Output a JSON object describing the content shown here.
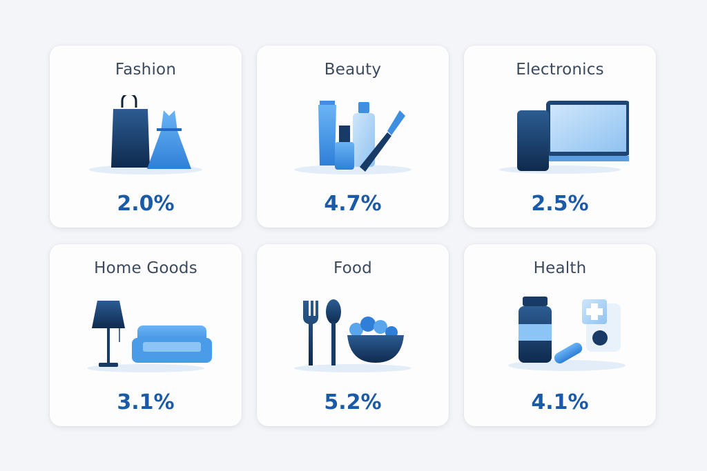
{
  "cards": [
    {
      "label": "Fashion",
      "value": "2.0%",
      "icon": "shopping-bag-dress-icon"
    },
    {
      "label": "Beauty",
      "value": "4.7%",
      "icon": "cosmetics-icon"
    },
    {
      "label": "Electronics",
      "value": "2.5%",
      "icon": "phone-laptop-icon"
    },
    {
      "label": "Home Goods",
      "value": "3.1%",
      "icon": "lamp-sofa-icon"
    },
    {
      "label": "Food",
      "value": "5.2%",
      "icon": "fork-spoon-bowl-icon"
    },
    {
      "label": "Health",
      "value": "4.1%",
      "icon": "medicine-icon"
    }
  ],
  "colors": {
    "value": "#1a5aa6",
    "title": "#3c4a5e",
    "dark_blue": "#173a66",
    "light_blue": "#4a9be8"
  }
}
